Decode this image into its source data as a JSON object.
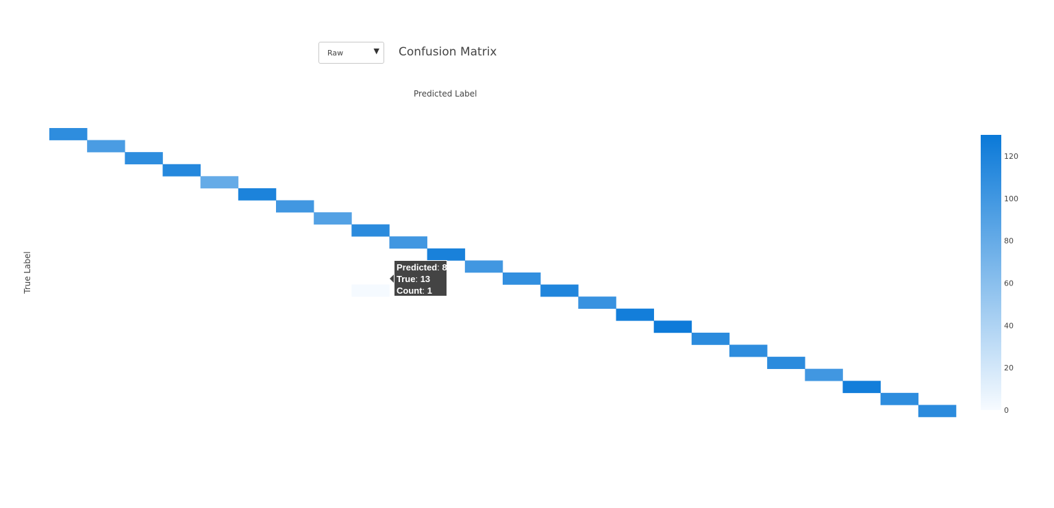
{
  "dropdown": {
    "selected": "Raw",
    "arrow_icon": "triangle-down-icon"
  },
  "tooltip": {
    "predicted_key": "Predicted",
    "predicted_value": "8",
    "true_key": "True",
    "true_value": "13",
    "count_key": "Count",
    "count_value": "1"
  },
  "chart_data": {
    "type": "heatmap",
    "title": "Confusion Matrix",
    "xlabel": "Predicted Label",
    "ylabel": "True Label",
    "n_classes": 24,
    "diagonal_values": [
      110,
      95,
      110,
      115,
      80,
      120,
      100,
      90,
      112,
      100,
      122,
      100,
      108,
      118,
      105,
      125,
      128,
      112,
      110,
      112,
      100,
      125,
      110,
      112
    ],
    "off_diagonal": [
      {
        "true": 13,
        "predicted": 8,
        "count": 1
      }
    ],
    "colorscale": {
      "min": 0,
      "max": 130,
      "low_color": "#f7fbff",
      "high_color": "#0a79d8",
      "ticks": [
        0,
        20,
        40,
        60,
        80,
        100,
        120
      ]
    },
    "axis_ticks_shown": false
  }
}
